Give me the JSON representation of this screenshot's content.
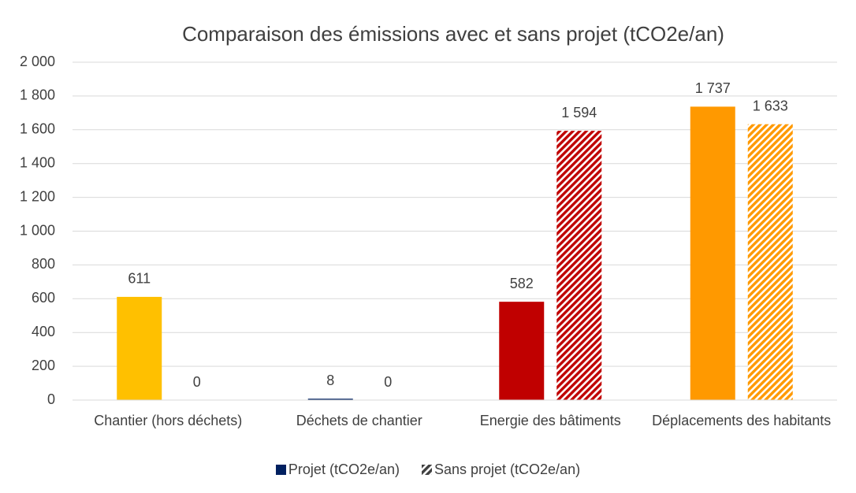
{
  "chart_data": {
    "type": "bar",
    "title": "Comparaison des émissions avec et sans projet (tCO2e/an)",
    "categories": [
      "Chantier (hors déchets)",
      "Déchets de chantier",
      "Energie des bâtiments",
      "Déplacements des habitants"
    ],
    "series": [
      {
        "name": "Projet (tCO2e/an)",
        "color": "#002060",
        "colors": [
          "#ffc000",
          "#002060",
          "#c00000",
          "#ff9900"
        ],
        "hatch": false,
        "values": [
          611,
          8,
          582,
          1737
        ],
        "value_labels": [
          "611",
          "8",
          "582",
          "1 737"
        ]
      },
      {
        "name": "Sans projet (tCO2e/an)",
        "color": "#404040",
        "colors": [
          "#ffc000",
          "#002060",
          "#c00000",
          "#ff9900"
        ],
        "hatch": true,
        "values": [
          0,
          0,
          1594,
          1633
        ],
        "value_labels": [
          "0",
          "0",
          "1 594",
          "1 633"
        ]
      }
    ],
    "ylim": [
      0,
      2000
    ],
    "yticks": [
      0,
      200,
      400,
      600,
      800,
      {
        "value": 1000,
        "label": "1 000"
      },
      {
        "value": 1200,
        "label": "1 200"
      },
      {
        "value": 1400,
        "label": "1 400"
      },
      {
        "value": 1600,
        "label": "1 600"
      },
      {
        "value": 1800,
        "label": "1 800"
      },
      {
        "value": 2000,
        "label": "2 000"
      }
    ],
    "grid": true,
    "legend": "bottom"
  }
}
